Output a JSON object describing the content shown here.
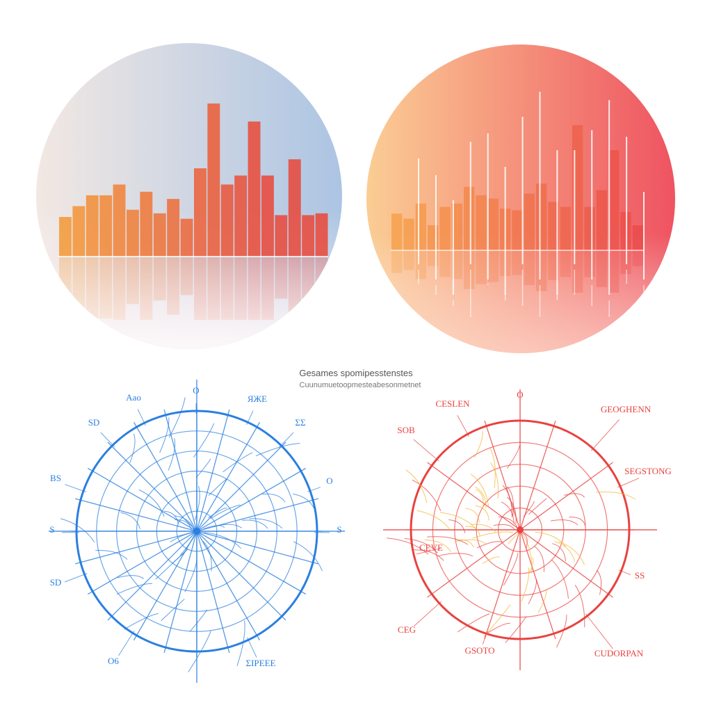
{
  "caption": {
    "line1": "Gesames spomipesstenstes",
    "line2": "Cuunumuetoopmesteabesonmetnet"
  },
  "chart_data": [
    {
      "type": "bar",
      "name": "left-bar-chart",
      "palette": [
        "#f39a3b",
        "#e74a3c"
      ],
      "background": [
        "#f4e9e3",
        "#a9c3e3"
      ],
      "values": [
        22,
        28,
        34,
        34,
        40,
        26,
        36,
        24,
        32,
        21,
        49,
        85,
        40,
        45,
        75,
        45,
        23,
        54,
        23,
        24
      ],
      "ylim": [
        0,
        100
      ]
    },
    {
      "type": "bar",
      "name": "right-spike-chart",
      "palette": [
        "#f6a04a",
        "#ea4a4a"
      ],
      "background": [
        "#fbcf95",
        "#ee4e5f"
      ],
      "values": [
        22,
        19,
        28,
        15,
        26,
        28,
        38,
        33,
        31,
        25,
        24,
        34,
        40,
        29,
        26,
        75,
        26,
        36,
        60,
        23,
        15
      ],
      "spikes": [
        55,
        45,
        30,
        65,
        70,
        50,
        80,
        95,
        60,
        60,
        72,
        90,
        68,
        35
      ],
      "ylim": [
        0,
        100
      ]
    },
    {
      "type": "polar",
      "name": "blue-polar-chart",
      "color": "#2a7fe0",
      "rings": 6,
      "spokes": 24,
      "labels": [
        "Aao",
        "ЯЖЕ",
        "SD",
        "O",
        "BS",
        "O",
        "S",
        "ΣΣ",
        "SD",
        "S",
        "Ο6",
        "ΣΙΡΕΕΕ"
      ]
    },
    {
      "type": "polar",
      "name": "red-polar-chart",
      "color": "#e8423f",
      "accent": "#f5b332",
      "rings": 5,
      "spokes": 10,
      "labels": [
        "CESLEN",
        "GEOGHENN",
        "SOB",
        "SEGSTONG",
        "CEG",
        "CEVE",
        "GSOTO",
        "CUDORPAN",
        "SS",
        "O"
      ]
    }
  ]
}
